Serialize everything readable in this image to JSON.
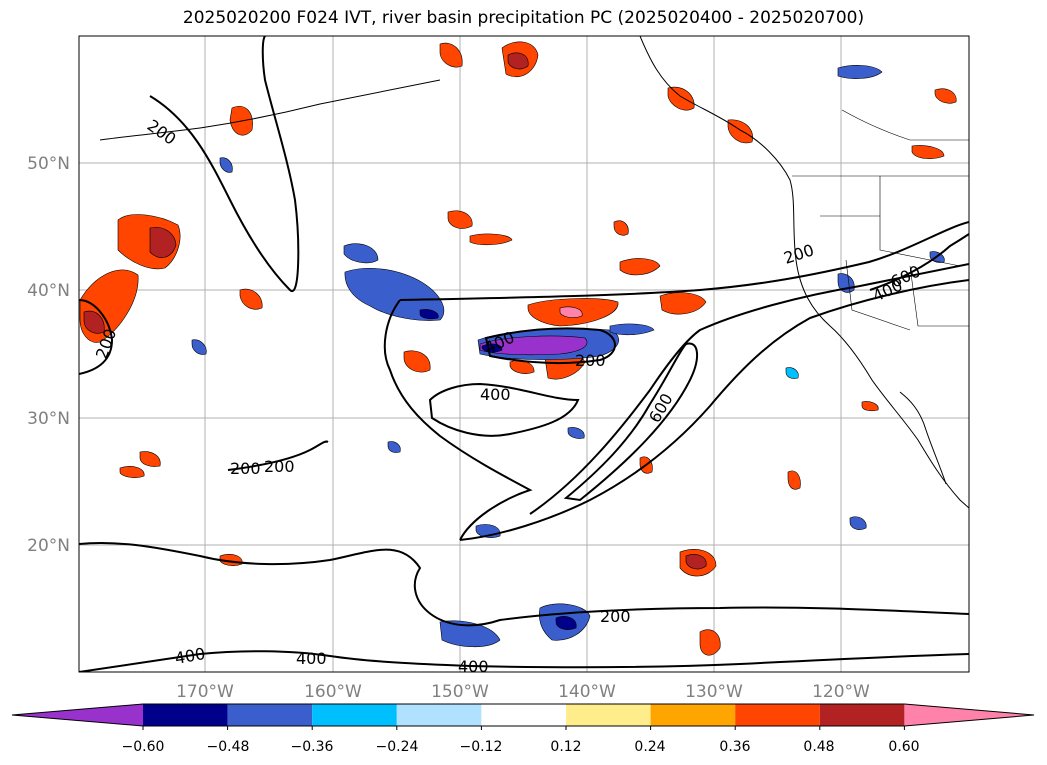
{
  "title": "2025020200 F024 IVT, river basin precipitation PC (2025020400 - 2025020700)",
  "map": {
    "lat_labels": [
      "50°N",
      "40°N",
      "30°N",
      "20°N"
    ],
    "lon_labels": [
      "170°W",
      "160°W",
      "150°W",
      "140°W",
      "130°W",
      "120°W"
    ],
    "grid": true
  },
  "contour_labels": [
    "200",
    "200",
    "200",
    "200",
    "200",
    "200",
    "200",
    "400",
    "400",
    "400",
    "400",
    "400",
    "400",
    "600",
    "600"
  ],
  "colorbar": {
    "ticks": [
      "−0.60",
      "−0.48",
      "−0.36",
      "−0.24",
      "−0.12",
      "0.12",
      "0.24",
      "0.36",
      "0.48",
      "0.60"
    ],
    "colors": [
      "#9932cc",
      "#00008b",
      "#3a5fcd",
      "#00bfff",
      "#b0e2ff",
      "#ffffff",
      "#ffec8b",
      "#ffa500",
      "#ff4500",
      "#b22222",
      "#ff82ab"
    ]
  }
}
